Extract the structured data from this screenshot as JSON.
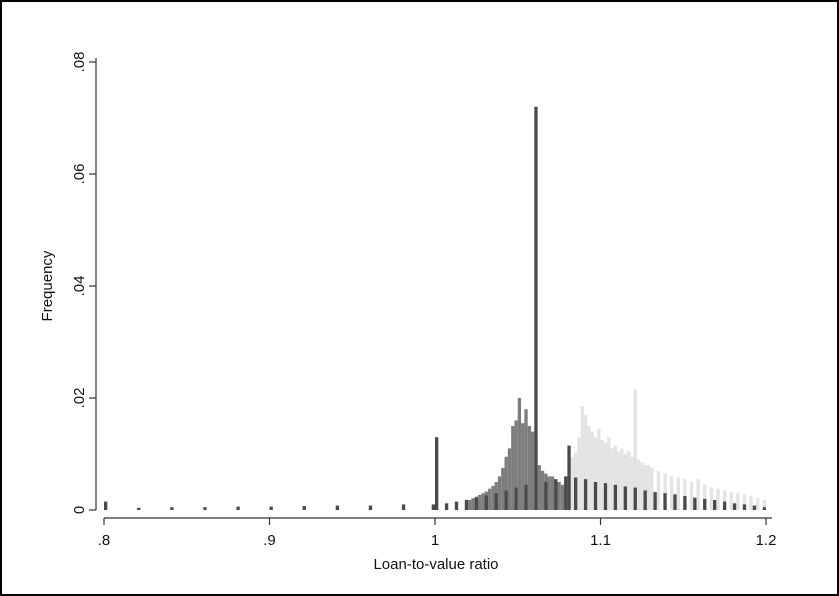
{
  "chart_data": {
    "type": "bar",
    "title": "",
    "xlabel": "Loan-to-value ratio",
    "ylabel": "Frequency",
    "xlim": [
      0.8,
      1.2
    ],
    "ylim": [
      0,
      0.08
    ],
    "x_ticks": [
      ".8",
      ".9",
      "1",
      "1.1",
      "1.2"
    ],
    "x_tick_values": [
      0.8,
      0.9,
      1.0,
      1.1,
      1.2
    ],
    "y_ticks": [
      "0",
      ".02",
      ".04",
      ".06",
      ".08"
    ],
    "y_tick_values": [
      0,
      0.02,
      0.04,
      0.06,
      0.08
    ],
    "grid": false,
    "legend": "none",
    "bin_width": 0.002,
    "series": [
      {
        "color": "#e3e3e3",
        "x": [
          1.08,
          1.082,
          1.084,
          1.086,
          1.088,
          1.09,
          1.092,
          1.094,
          1.096,
          1.098,
          1.1,
          1.102,
          1.104,
          1.106,
          1.108,
          1.11,
          1.112,
          1.114,
          1.116,
          1.118,
          1.12,
          1.122,
          1.124,
          1.126,
          1.128,
          1.13,
          1.134,
          1.138,
          1.142,
          1.146,
          1.15,
          1.154,
          1.158,
          1.162,
          1.166,
          1.17,
          1.174,
          1.178,
          1.182,
          1.186,
          1.19,
          1.194,
          1.198
        ],
        "values": [
          0.0085,
          0.0095,
          0.0102,
          0.013,
          0.0185,
          0.017,
          0.015,
          0.014,
          0.013,
          0.0145,
          0.0125,
          0.012,
          0.013,
          0.011,
          0.0115,
          0.0105,
          0.011,
          0.01,
          0.0105,
          0.0095,
          0.0215,
          0.009,
          0.0085,
          0.008,
          0.008,
          0.0075,
          0.007,
          0.0065,
          0.006,
          0.0058,
          0.0055,
          0.005,
          0.0055,
          0.0045,
          0.004,
          0.0038,
          0.0035,
          0.0032,
          0.003,
          0.0028,
          0.0025,
          0.0022,
          0.0018
        ]
      },
      {
        "color": "#7d7d7d",
        "x": [
          1.02,
          1.022,
          1.024,
          1.026,
          1.028,
          1.03,
          1.032,
          1.034,
          1.036,
          1.038,
          1.04,
          1.042,
          1.044,
          1.046,
          1.048,
          1.05,
          1.052,
          1.054,
          1.056,
          1.058,
          1.06,
          1.062,
          1.064,
          1.066,
          1.068,
          1.07,
          1.072,
          1.074,
          1.076
        ],
        "values": [
          0.0018,
          0.0021,
          0.0024,
          0.0027,
          0.003,
          0.0033,
          0.0038,
          0.0043,
          0.005,
          0.006,
          0.0075,
          0.0095,
          0.011,
          0.015,
          0.016,
          0.02,
          0.0155,
          0.018,
          0.015,
          0.014,
          0.013,
          0.008,
          0.007,
          0.0065,
          0.006,
          0.006,
          0.0055,
          0.005,
          0.0045
        ]
      },
      {
        "color": "#4a4a4a",
        "x": [
          0.8,
          0.82,
          0.84,
          0.86,
          0.88,
          0.9,
          0.92,
          0.94,
          0.96,
          0.98,
          0.998,
          1.0,
          1.006,
          1.012,
          1.018,
          1.024,
          1.03,
          1.036,
          1.042,
          1.048,
          1.054,
          1.06,
          1.066,
          1.072,
          1.078,
          1.08,
          1.084,
          1.09,
          1.096,
          1.102,
          1.108,
          1.114,
          1.12,
          1.126,
          1.132,
          1.138,
          1.144,
          1.15,
          1.156,
          1.162,
          1.168,
          1.174,
          1.18,
          1.186,
          1.192,
          1.198
        ],
        "values": [
          0.0015,
          0.0004,
          0.0005,
          0.0005,
          0.0006,
          0.0006,
          0.0007,
          0.0008,
          0.0008,
          0.001,
          0.001,
          0.013,
          0.0012,
          0.0015,
          0.0018,
          0.0022,
          0.0026,
          0.003,
          0.0035,
          0.004,
          0.0045,
          0.072,
          0.005,
          0.0055,
          0.006,
          0.0115,
          0.0058,
          0.0055,
          0.005,
          0.0048,
          0.0045,
          0.0042,
          0.004,
          0.0035,
          0.0032,
          0.003,
          0.0028,
          0.0025,
          0.0022,
          0.002,
          0.0018,
          0.0015,
          0.0012,
          0.001,
          0.0008,
          0.0005
        ]
      }
    ]
  }
}
